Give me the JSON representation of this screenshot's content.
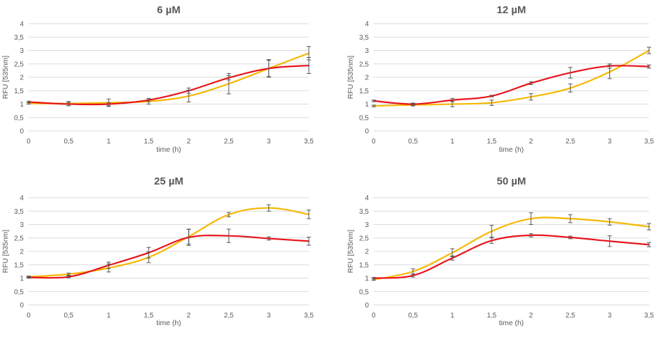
{
  "chart_data": [
    {
      "type": "line",
      "title": "6 µM",
      "xlabel": "time (h)",
      "ylabel": "RFU [535nm]",
      "x": [
        0,
        0.5,
        1,
        1.5,
        2,
        2.5,
        3,
        3.5
      ],
      "x_tick_labels": [
        "0",
        "0,5",
        "1",
        "1,5",
        "2",
        "2,5",
        "3",
        "3,5"
      ],
      "y_tick_labels": [
        "0",
        "0,5",
        "1",
        "1,5",
        "2",
        "2,5",
        "3",
        "3,5",
        "4"
      ],
      "ylim": [
        0,
        4
      ],
      "grid": true,
      "series": [
        {
          "name": "red",
          "color": "#e8131b",
          "values": [
            1.08,
            1.0,
            1.0,
            1.15,
            1.5,
            1.98,
            2.33,
            2.44
          ],
          "errors": [
            0.03,
            0.06,
            0.06,
            0.06,
            0.1,
            0.08,
            0.3,
            0.3
          ]
        },
        {
          "name": "yellow",
          "color": "#f5b800",
          "values": [
            1.03,
            1.02,
            1.05,
            1.1,
            1.3,
            1.76,
            2.33,
            2.9
          ],
          "errors": [
            0.03,
            0.08,
            0.14,
            0.1,
            0.22,
            0.38,
            0.33,
            0.25
          ]
        }
      ]
    },
    {
      "type": "line",
      "title": "12 µM",
      "xlabel": "time (h)",
      "ylabel": "RFU [535nm]",
      "x": [
        0,
        0.5,
        1,
        1.5,
        2,
        2.5,
        3,
        3.5
      ],
      "x_tick_labels": [
        "0",
        "0,5",
        "1",
        "1,5",
        "2",
        "2,5",
        "3",
        "3,5"
      ],
      "y_tick_labels": [
        "0",
        "0,5",
        "1",
        "1,5",
        "2",
        "2,5",
        "3",
        "3,5",
        "4"
      ],
      "ylim": [
        0,
        4
      ],
      "grid": true,
      "series": [
        {
          "name": "red",
          "color": "#e8131b",
          "values": [
            1.12,
            1.0,
            1.15,
            1.3,
            1.78,
            2.17,
            2.42,
            2.4
          ],
          "errors": [
            0.03,
            0.04,
            0.06,
            0.03,
            0.05,
            0.2,
            0.08,
            0.06
          ]
        },
        {
          "name": "yellow",
          "color": "#f5b800",
          "values": [
            0.93,
            0.97,
            1.0,
            1.05,
            1.27,
            1.6,
            2.2,
            3.0
          ],
          "errors": [
            0.03,
            0.04,
            0.1,
            0.1,
            0.12,
            0.15,
            0.25,
            0.12
          ]
        }
      ]
    },
    {
      "type": "line",
      "title": "25 µM",
      "xlabel": "time (h)",
      "ylabel": "RFU [535nm]",
      "x": [
        0,
        0.5,
        1,
        1.5,
        2,
        2.5,
        3,
        3.5
      ],
      "x_tick_labels": [
        "0",
        "0,5",
        "1",
        "1,5",
        "2",
        "2,5",
        "3",
        "3,5"
      ],
      "y_tick_labels": [
        "0",
        "0,5",
        "1",
        "1,5",
        "2",
        "2,5",
        "3",
        "3,5",
        "4"
      ],
      "ylim": [
        0,
        4
      ],
      "grid": true,
      "series": [
        {
          "name": "red",
          "color": "#e8131b",
          "values": [
            1.03,
            1.05,
            1.48,
            1.95,
            2.52,
            2.58,
            2.48,
            2.38
          ],
          "errors": [
            0.03,
            0.04,
            0.12,
            0.2,
            0.3,
            0.25,
            0.06,
            0.15
          ]
        },
        {
          "name": "yellow",
          "color": "#f5b800",
          "values": [
            1.05,
            1.15,
            1.38,
            1.78,
            2.55,
            3.37,
            3.62,
            3.38
          ],
          "errors": [
            0.03,
            0.04,
            0.15,
            0.2,
            0.28,
            0.08,
            0.12,
            0.16
          ]
        }
      ]
    },
    {
      "type": "line",
      "title": "50 µM",
      "xlabel": "time (h)",
      "ylabel": "RFU [535nm]",
      "x": [
        0,
        0.5,
        1,
        1.5,
        2,
        2.5,
        3,
        3.5
      ],
      "x_tick_labels": [
        "0",
        "0,5",
        "1",
        "1,5",
        "2",
        "2,5",
        "3",
        "3,5"
      ],
      "y_tick_labels": [
        "0",
        "0,5",
        "1",
        "1,5",
        "2",
        "2,5",
        "3",
        "3,5",
        "4"
      ],
      "ylim": [
        0,
        4
      ],
      "grid": true,
      "series": [
        {
          "name": "red",
          "color": "#e8131b",
          "values": [
            1.0,
            1.1,
            1.75,
            2.4,
            2.6,
            2.52,
            2.38,
            2.25
          ],
          "errors": [
            0.03,
            0.06,
            0.08,
            0.1,
            0.06,
            0.05,
            0.2,
            0.08
          ]
        },
        {
          "name": "yellow",
          "color": "#f5b800",
          "values": [
            0.95,
            1.25,
            1.95,
            2.75,
            3.22,
            3.22,
            3.1,
            2.92
          ],
          "errors": [
            0.03,
            0.1,
            0.15,
            0.22,
            0.22,
            0.15,
            0.12,
            0.12
          ]
        }
      ]
    }
  ]
}
